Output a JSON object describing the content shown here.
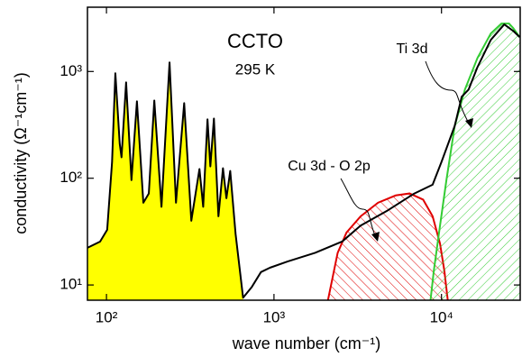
{
  "chart_data": {
    "type": "line",
    "xlabel": "wave number (cm⁻¹)",
    "ylabel": "conductivity (Ω⁻¹cm⁻¹)",
    "xlog": true,
    "ylog": true,
    "xlim": [
      77,
      29500
    ],
    "ylim": [
      7.2,
      4000
    ],
    "xticks": [
      {
        "value": 100,
        "label": "10²"
      },
      {
        "value": 1000,
        "label": "10³"
      },
      {
        "value": 10000,
        "label": "10⁴"
      }
    ],
    "yticks": [
      {
        "value": 10,
        "label": "10¹"
      },
      {
        "value": 100,
        "label": "10²"
      },
      {
        "value": 1000,
        "label": "10³"
      }
    ],
    "annotations": [
      "CCTO",
      "295 K",
      "Ti 3d",
      "Cu 3d - O 2p"
    ],
    "series": [
      {
        "color": "#ffff00",
        "fill": true,
        "x": [
          77,
          91.6,
          101,
          108,
          113,
          120,
          123,
          131,
          141,
          152,
          166,
          179,
          193,
          213,
          238,
          260,
          291,
          321,
          359,
          378,
          401,
          417,
          438,
          466,
          496,
          520,
          548,
          590,
          654
        ],
        "values": [
          22.3,
          25.5,
          32.9,
          142,
          962,
          210,
          157,
          791,
          96,
          525,
          59,
          72,
          535,
          54,
          1215,
          59,
          505,
          40,
          122,
          54,
          356,
          129,
          362,
          44,
          124,
          65,
          117,
          30,
          7.6
        ]
      },
      {
        "color": "#e00000",
        "hatch": "\\",
        "x": [
          2100,
          2400,
          2710,
          3290,
          4180,
          5330,
          6450,
          7770,
          8850,
          9800,
          10400,
          10900
        ],
        "values": [
          7.2,
          20,
          31,
          44,
          59,
          69,
          72,
          63,
          44,
          24.4,
          13.6,
          7.2
        ]
      },
      {
        "color": "#33cc33",
        "hatch": "/",
        "x": [
          8600,
          9000,
          9800,
          10700,
          12000,
          13800,
          16400,
          19700,
          22800,
          25300,
          26800,
          29300
        ],
        "values": [
          7.2,
          13.6,
          36,
          96,
          310,
          678,
          1340,
          2270,
          2810,
          2810,
          2550,
          2100
        ]
      },
      {
        "color": "#000000",
        "x": [
          77,
          91.6,
          101,
          108,
          113,
          120,
          123,
          131,
          141,
          152,
          166,
          179,
          193,
          213,
          238,
          260,
          291,
          321,
          359,
          378,
          401,
          417,
          438,
          466,
          496,
          520,
          548,
          590,
          654,
          738,
          836,
          945,
          1205,
          1760,
          2550,
          3290,
          4780,
          6890,
          8850,
          10000,
          12000,
          13200,
          14520,
          16400,
          19700,
          23700,
          26800,
          29300
        ],
        "values": [
          22.3,
          25.5,
          32.9,
          142,
          962,
          210,
          157,
          791,
          96,
          525,
          59,
          72,
          535,
          54,
          1215,
          59,
          505,
          40,
          122,
          54,
          356,
          129,
          362,
          44,
          124,
          65,
          117,
          30,
          7.6,
          9.6,
          13.2,
          14.5,
          16.6,
          20,
          25.5,
          36,
          50,
          72,
          87,
          142,
          310,
          580,
          678,
          1100,
          1980,
          2760,
          2400,
          2100
        ]
      }
    ]
  }
}
